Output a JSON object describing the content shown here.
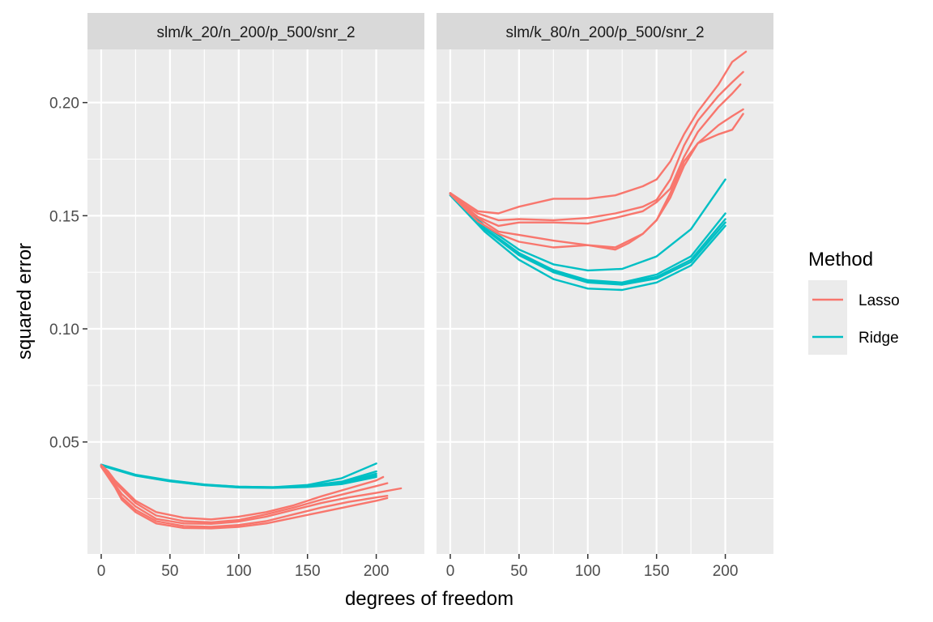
{
  "chart_data": {
    "type": "line",
    "xlabel": "degrees of freedom",
    "ylabel": "squared error",
    "xlim": [
      -10,
      235
    ],
    "ylim": [
      0.0005,
      0.2235
    ],
    "x_ticks": [
      0,
      50,
      100,
      150,
      200
    ],
    "y_ticks": [
      0.05,
      0.1,
      0.15,
      0.2
    ],
    "y_tick_labels": [
      "0.05",
      "0.10",
      "0.15",
      "0.20"
    ],
    "grid": true,
    "legend": {
      "title": "Method",
      "position": "right",
      "entries": [
        {
          "label": "Lasso",
          "color": "#F8766D"
        },
        {
          "label": "Ridge",
          "color": "#00BFC4"
        }
      ]
    },
    "colors": {
      "Lasso": "#F8766D",
      "Ridge": "#00BFC4"
    },
    "panels": [
      {
        "strip": "slm/k_20/n_200/p_500/snr_2",
        "series": [
          {
            "method": "Ridge",
            "x": [
              0,
              25,
              50,
              75,
              100,
              125,
              150,
              175,
              200
            ],
            "y": [
              0.04,
              0.0355,
              0.033,
              0.0312,
              0.0302,
              0.03,
              0.031,
              0.034,
              0.0405
            ]
          },
          {
            "method": "Ridge",
            "x": [
              0,
              25,
              50,
              75,
              100,
              125,
              150,
              175,
              200
            ],
            "y": [
              0.0398,
              0.0354,
              0.0329,
              0.0311,
              0.0302,
              0.03,
              0.0306,
              0.0325,
              0.037
            ]
          },
          {
            "method": "Ridge",
            "x": [
              0,
              25,
              50,
              75,
              100,
              125,
              150,
              175,
              200
            ],
            "y": [
              0.0398,
              0.0353,
              0.0328,
              0.031,
              0.0301,
              0.0299,
              0.0304,
              0.032,
              0.036
            ]
          },
          {
            "method": "Ridge",
            "x": [
              0,
              25,
              50,
              75,
              100,
              125,
              150,
              175,
              200
            ],
            "y": [
              0.0397,
              0.0352,
              0.0327,
              0.031,
              0.03,
              0.0298,
              0.0302,
              0.0317,
              0.0352
            ]
          },
          {
            "method": "Ridge",
            "x": [
              0,
              25,
              50,
              75,
              100,
              125,
              150,
              175,
              200
            ],
            "y": [
              0.0396,
              0.0351,
              0.0326,
              0.0309,
              0.0299,
              0.0297,
              0.0301,
              0.0314,
              0.0345
            ]
          },
          {
            "method": "Lasso",
            "x": [
              0,
              5,
              10,
              15,
              25,
              40,
              60,
              80,
              100,
              120,
              140,
              160,
              180,
              200,
              205
            ],
            "y": [
              0.0398,
              0.037,
              0.033,
              0.03,
              0.024,
              0.019,
              0.0165,
              0.0158,
              0.017,
              0.019,
              0.022,
              0.026,
              0.0295,
              0.033,
              0.0345
            ]
          },
          {
            "method": "Lasso",
            "x": [
              0,
              5,
              10,
              15,
              25,
              40,
              60,
              80,
              100,
              120,
              140,
              160,
              180,
              200,
              208
            ],
            "y": [
              0.0395,
              0.036,
              0.032,
              0.029,
              0.023,
              0.0175,
              0.015,
              0.0145,
              0.0155,
              0.018,
              0.021,
              0.0245,
              0.0275,
              0.0305,
              0.0318
            ]
          },
          {
            "method": "Lasso",
            "x": [
              0,
              5,
              10,
              15,
              25,
              40,
              60,
              80,
              100,
              120,
              140,
              160,
              180,
              200,
              218
            ],
            "y": [
              0.0393,
              0.0355,
              0.031,
              0.027,
              0.0215,
              0.016,
              0.014,
              0.0138,
              0.0148,
              0.017,
              0.02,
              0.023,
              0.0255,
              0.0275,
              0.0295
            ]
          },
          {
            "method": "Lasso",
            "x": [
              0,
              5,
              10,
              15,
              25,
              40,
              60,
              80,
              100,
              120,
              140,
              160,
              180,
              200,
              208
            ],
            "y": [
              0.0392,
              0.035,
              0.0305,
              0.0255,
              0.02,
              0.015,
              0.0128,
              0.0125,
              0.0133,
              0.015,
              0.018,
              0.021,
              0.0235,
              0.0255,
              0.0262
            ]
          },
          {
            "method": "Lasso",
            "x": [
              0,
              5,
              10,
              15,
              25,
              40,
              60,
              80,
              100,
              120,
              140,
              160,
              180,
              200,
              208
            ],
            "y": [
              0.039,
              0.0345,
              0.03,
              0.0245,
              0.019,
              0.014,
              0.012,
              0.0118,
              0.0125,
              0.014,
              0.0165,
              0.019,
              0.0215,
              0.024,
              0.0252
            ]
          }
        ]
      },
      {
        "strip": "slm/k_80/n_200/p_500/snr_2",
        "series": [
          {
            "method": "Ridge",
            "x": [
              0,
              25,
              50,
              75,
              100,
              125,
              150,
              175,
              200
            ],
            "y": [
              0.16,
              0.1455,
              0.135,
              0.1285,
              0.1258,
              0.1265,
              0.132,
              0.144,
              0.166
            ]
          },
          {
            "method": "Ridge",
            "x": [
              0,
              25,
              50,
              75,
              100,
              125,
              150,
              175,
              200
            ],
            "y": [
              0.1595,
              0.1445,
              0.1335,
              0.126,
              0.1215,
              0.1205,
              0.124,
              0.132,
              0.151
            ]
          },
          {
            "method": "Ridge",
            "x": [
              0,
              25,
              50,
              75,
              100,
              125,
              150,
              175,
              200
            ],
            "y": [
              0.1595,
              0.1443,
              0.133,
              0.1255,
              0.121,
              0.12,
              0.123,
              0.1305,
              0.1485
            ]
          },
          {
            "method": "Ridge",
            "x": [
              0,
              25,
              50,
              75,
              100,
              125,
              150,
              175,
              200
            ],
            "y": [
              0.159,
              0.144,
              0.1325,
              0.125,
              0.1205,
              0.1195,
              0.1222,
              0.1295,
              0.147
            ]
          },
          {
            "method": "Ridge",
            "x": [
              0,
              25,
              50,
              75,
              100,
              125,
              150,
              175,
              200
            ],
            "y": [
              0.159,
              0.143,
              0.1305,
              0.122,
              0.1178,
              0.1172,
              0.1205,
              0.128,
              0.1455
            ]
          },
          {
            "method": "Lasso",
            "x": [
              0,
              10,
              20,
              35,
              50,
              75,
              100,
              120,
              140,
              150,
              160,
              170,
              180,
              195,
              205,
              215
            ],
            "y": [
              0.16,
              0.156,
              0.152,
              0.151,
              0.154,
              0.1575,
              0.1575,
              0.159,
              0.163,
              0.166,
              0.174,
              0.186,
              0.196,
              0.208,
              0.218,
              0.2225
            ]
          },
          {
            "method": "Lasso",
            "x": [
              0,
              10,
              20,
              35,
              50,
              75,
              100,
              120,
              140,
              150,
              160,
              170,
              180,
              195,
              205,
              213
            ],
            "y": [
              0.16,
              0.155,
              0.151,
              0.148,
              0.1485,
              0.148,
              0.149,
              0.151,
              0.154,
              0.157,
              0.166,
              0.181,
              0.192,
              0.203,
              0.209,
              0.2135
            ]
          },
          {
            "method": "Lasso",
            "x": [
              0,
              10,
              20,
              35,
              50,
              75,
              100,
              120,
              140,
              150,
              160,
              170,
              180,
              195,
              205,
              211
            ],
            "y": [
              0.16,
              0.1545,
              0.1495,
              0.1455,
              0.147,
              0.147,
              0.1465,
              0.149,
              0.152,
              0.156,
              0.162,
              0.176,
              0.187,
              0.198,
              0.204,
              0.208
            ]
          },
          {
            "method": "Lasso",
            "x": [
              0,
              10,
              20,
              35,
              50,
              75,
              100,
              120,
              140,
              150,
              160,
              170,
              180,
              195,
              205,
              213
            ],
            "y": [
              0.1595,
              0.154,
              0.149,
              0.143,
              0.1415,
              0.139,
              0.137,
              0.136,
              0.142,
              0.148,
              0.158,
              0.172,
              0.182,
              0.19,
              0.194,
              0.197
            ]
          },
          {
            "method": "Lasso",
            "x": [
              0,
              10,
              20,
              35,
              50,
              75,
              100,
              110,
              120,
              130,
              140,
              150,
              160,
              170,
              180,
              195,
              205,
              213
            ],
            "y": [
              0.1595,
              0.1535,
              0.1475,
              0.142,
              0.1385,
              0.136,
              0.137,
              0.136,
              0.135,
              0.138,
              0.142,
              0.148,
              0.16,
              0.174,
              0.182,
              0.186,
              0.188,
              0.195
            ]
          }
        ]
      }
    ]
  }
}
